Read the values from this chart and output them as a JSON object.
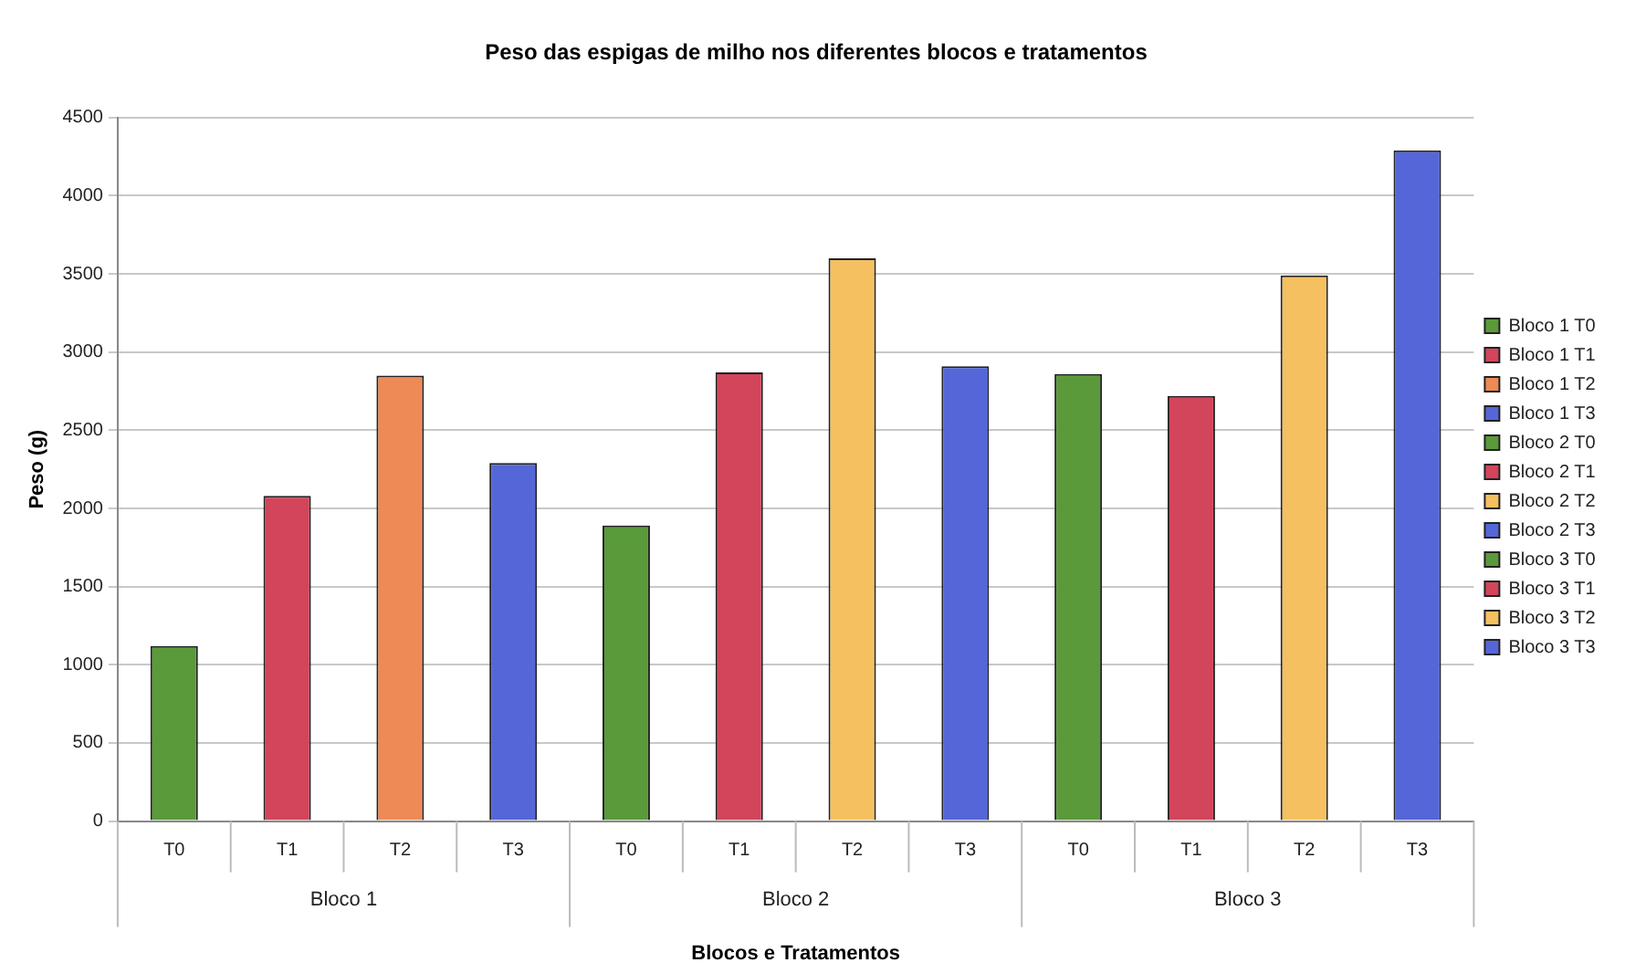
{
  "chart_data": {
    "type": "bar",
    "title": "Peso das espigas de milho nos diferentes blocos e tratamentos",
    "xlabel": "Blocos e Tratamentos",
    "ylabel": "Peso (g)",
    "categories": [
      "T0",
      "T1",
      "T2",
      "T3",
      "T0",
      "T1",
      "T2",
      "T3",
      "T0",
      "T1",
      "T2",
      "T3"
    ],
    "annotations": [
      "Bloco 1",
      "Bloco 2",
      "Bloco 3"
    ],
    "series": [
      {
        "name": "Bloco 1 T0",
        "color": "#5a9a3a",
        "values": [
          1120,
          null,
          null,
          null,
          null,
          null,
          null,
          null,
          null,
          null,
          null,
          null
        ]
      },
      {
        "name": "Bloco 1 T1",
        "color": "#d2455a",
        "values": [
          null,
          2080,
          null,
          null,
          null,
          null,
          null,
          null,
          null,
          null,
          null,
          null
        ]
      },
      {
        "name": "Bloco 1 T2",
        "color": "#ee8a55",
        "values": [
          null,
          null,
          2850,
          null,
          null,
          null,
          null,
          null,
          null,
          null,
          null,
          null
        ]
      },
      {
        "name": "Bloco 1 T3",
        "color": "#5566d8",
        "values": [
          null,
          null,
          null,
          2290,
          null,
          null,
          null,
          null,
          null,
          null,
          null,
          null
        ]
      },
      {
        "name": "Bloco 2 T0",
        "color": "#5a9a3a",
        "values": [
          null,
          null,
          null,
          null,
          1890,
          null,
          null,
          null,
          null,
          null,
          null,
          null
        ]
      },
      {
        "name": "Bloco 2 T1",
        "color": "#d2455a",
        "values": [
          null,
          null,
          null,
          null,
          null,
          2870,
          null,
          null,
          null,
          null,
          null,
          null
        ]
      },
      {
        "name": "Bloco 2 T2",
        "color": "#f5c060",
        "values": [
          null,
          null,
          null,
          null,
          null,
          null,
          3600,
          null,
          null,
          null,
          null,
          null
        ]
      },
      {
        "name": "Bloco 2 T3",
        "color": "#5566d8",
        "values": [
          null,
          null,
          null,
          null,
          null,
          null,
          null,
          2910,
          null,
          null,
          null,
          null
        ]
      },
      {
        "name": "Bloco 3 T0",
        "color": "#5a9a3a",
        "values": [
          null,
          null,
          null,
          null,
          null,
          null,
          null,
          null,
          2860,
          null,
          null,
          null
        ]
      },
      {
        "name": "Bloco 3 T1",
        "color": "#d2455a",
        "values": [
          null,
          null,
          null,
          null,
          null,
          null,
          null,
          null,
          null,
          2720,
          null,
          null
        ]
      },
      {
        "name": "Bloco 3 T2",
        "color": "#f5c060",
        "values": [
          null,
          null,
          null,
          null,
          null,
          null,
          null,
          null,
          null,
          null,
          3490,
          null
        ]
      },
      {
        "name": "Bloco 3 T3",
        "color": "#5566d8",
        "values": [
          null,
          null,
          null,
          null,
          null,
          null,
          null,
          null,
          null,
          null,
          null,
          4290
        ]
      }
    ],
    "ylim": [
      0,
      4500
    ],
    "yticks": [
      0,
      500,
      1000,
      1500,
      2000,
      2500,
      3000,
      3500,
      4000,
      4500
    ],
    "grid": "y",
    "legend": "right"
  }
}
